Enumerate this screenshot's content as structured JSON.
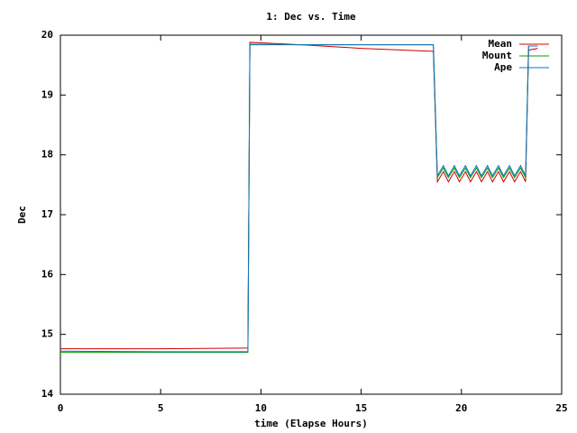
{
  "chart_data": {
    "type": "line",
    "title": "1: Dec vs. Time",
    "xlabel": "time (Elapse Hours)",
    "ylabel": "Dec",
    "x": [
      0,
      5,
      9.3,
      9.35,
      9.45,
      12,
      15,
      18.55,
      18.6,
      18.8,
      19.1,
      19.35,
      19.65,
      19.9,
      20.2,
      20.45,
      20.75,
      21.0,
      21.3,
      21.55,
      21.85,
      22.1,
      22.4,
      22.65,
      22.95,
      23.2,
      23.35,
      23.8
    ],
    "series": [
      {
        "name": "Mean",
        "color": "#d00000",
        "values": [
          14.76,
          14.76,
          14.77,
          14.77,
          19.88,
          19.84,
          19.78,
          19.73,
          19.73,
          17.55,
          17.72,
          17.55,
          17.72,
          17.55,
          17.72,
          17.55,
          17.72,
          17.55,
          17.72,
          17.55,
          17.72,
          17.55,
          17.72,
          17.55,
          17.72,
          17.55,
          19.75,
          19.78
        ]
      },
      {
        "name": "Mount",
        "color": "#00a000",
        "values": [
          14.7,
          14.7,
          14.7,
          14.7,
          19.85,
          19.84,
          19.84,
          19.84,
          19.84,
          17.62,
          17.78,
          17.62,
          17.78,
          17.62,
          17.78,
          17.62,
          17.78,
          17.62,
          17.78,
          17.62,
          17.78,
          17.62,
          17.78,
          17.62,
          17.78,
          17.62,
          19.82,
          19.82
        ]
      },
      {
        "name": "Ape",
        "color": "#1070c0",
        "values": [
          14.72,
          14.71,
          14.71,
          14.71,
          19.84,
          19.84,
          19.84,
          19.84,
          19.84,
          17.65,
          17.82,
          17.65,
          17.82,
          17.65,
          17.82,
          17.65,
          17.82,
          17.65,
          17.82,
          17.65,
          17.82,
          17.65,
          17.82,
          17.65,
          17.82,
          17.65,
          19.82,
          19.82
        ]
      }
    ],
    "xlim": [
      0,
      25
    ],
    "xticks": [
      0,
      5,
      10,
      15,
      20,
      25
    ],
    "ylim": [
      14,
      20
    ],
    "yticks": [
      14,
      15,
      16,
      17,
      18,
      19,
      20
    ],
    "legend": "top-right"
  }
}
